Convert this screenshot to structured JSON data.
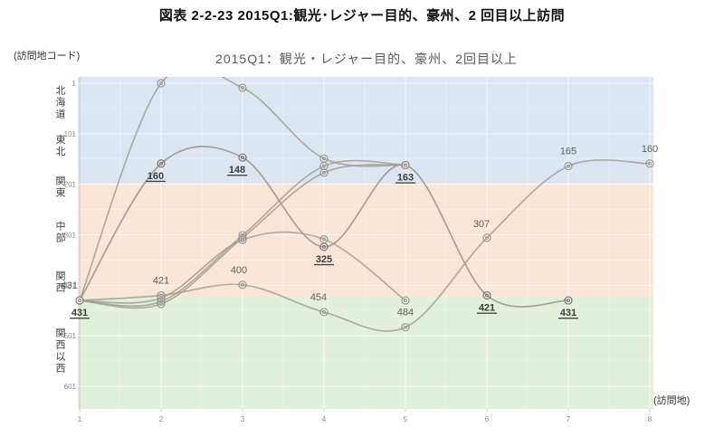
{
  "page_title": "図表 2-2-23 2015Q1:観光･レジャー目的、豪州、2 回目以上訪問",
  "chart_data": {
    "type": "line",
    "title": "2015Q1：観光・レジャー目的、豪州、2回目以上",
    "y_axis_unit": "(訪問地コード)",
    "x_axis_unit": "(訪問地)",
    "x_ticks": [
      1,
      2,
      3,
      4,
      5,
      6,
      7,
      8
    ],
    "y_ticks": [
      1,
      101,
      201,
      301,
      401,
      501,
      601
    ],
    "y_range": [
      1,
      660
    ],
    "y_inverted": true,
    "grid": true,
    "legend": "none",
    "region_labels": [
      {
        "label": "北海道",
        "code": 38
      },
      {
        "label": "東北",
        "code": 124
      },
      {
        "label": "関東",
        "code": 205
      },
      {
        "label": "中部",
        "code": 295
      },
      {
        "label": "関西",
        "code": 393
      },
      {
        "label": "関西以西",
        "code": 529
      }
    ],
    "bands": [
      {
        "name": "band-north",
        "from": 1,
        "to": 200,
        "color": "#dce6f2"
      },
      {
        "name": "band-central",
        "from": 200,
        "to": 424,
        "color": "#fbe5d7"
      },
      {
        "name": "band-west",
        "from": 424,
        "to": 660,
        "color": "#e2efda"
      }
    ],
    "colors": {
      "line": "#a39a90",
      "marker": "#93908b",
      "marker_emphasis": "#6e6b66",
      "label_plain": "#5f5f5f",
      "label_emphasis": "#3d3d3d",
      "tick_label": "#8a8a8a",
      "region_label": "#404040",
      "gridline": "#ffffff",
      "axis": "#c9c9c9"
    },
    "series": [
      {
        "name": "route-1",
        "emphasis": true,
        "points": [
          {
            "stop": 1,
            "code": 431,
            "label": "431",
            "label_style": "emphasis",
            "label_pos": "below"
          },
          {
            "stop": 2,
            "code": 160,
            "label": "160",
            "label_style": "emphasis",
            "label_pos": "below",
            "label_dx": -6
          },
          {
            "stop": 3,
            "code": 148,
            "label": "148",
            "label_style": "emphasis",
            "label_pos": "below",
            "label_dx": -6
          },
          {
            "stop": 4,
            "code": 325,
            "label": "325",
            "label_style": "emphasis",
            "label_pos": "below"
          },
          {
            "stop": 5,
            "code": 163,
            "label": "163",
            "label_style": "emphasis",
            "label_pos": "below"
          },
          {
            "stop": 6,
            "code": 421,
            "label": "421",
            "label_style": "emphasis",
            "label_pos": "below"
          },
          {
            "stop": 7,
            "code": 431,
            "label": "431",
            "label_style": "emphasis",
            "label_pos": "below"
          }
        ]
      },
      {
        "name": "route-2",
        "emphasis": false,
        "points": [
          {
            "stop": 1,
            "code": 431,
            "label": "431",
            "label_style": "plain",
            "label_pos": "left-above"
          },
          {
            "stop": 2,
            "code": 421,
            "label": "421",
            "label_style": "plain",
            "label_pos": "above"
          },
          {
            "stop": 3,
            "code": 400,
            "label": "400",
            "label_style": "plain",
            "label_pos": "above",
            "label_dx": -4
          },
          {
            "stop": 4,
            "code": 454,
            "label": "454",
            "label_style": "plain",
            "label_pos": "above",
            "label_dx": -6
          },
          {
            "stop": 5,
            "code": 484,
            "label": "484",
            "label_style": "plain",
            "label_pos": "above"
          },
          {
            "stop": 6,
            "code": 307,
            "label": "307",
            "label_style": "plain",
            "label_pos": "above-left"
          },
          {
            "stop": 7,
            "code": 165,
            "label": "165",
            "label_style": "plain",
            "label_pos": "above"
          },
          {
            "stop": 8,
            "code": 160,
            "label": "160",
            "label_style": "plain",
            "label_pos": "above"
          }
        ]
      },
      {
        "name": "route-3",
        "emphasis": false,
        "points": [
          {
            "stop": 1,
            "code": 431
          },
          {
            "stop": 2,
            "code": 1
          },
          {
            "stop": 3,
            "code": 10
          },
          {
            "stop": 4,
            "code": 150
          },
          {
            "stop": 5,
            "code": 163
          }
        ]
      },
      {
        "name": "route-4",
        "emphasis": false,
        "points": [
          {
            "stop": 1,
            "code": 431
          },
          {
            "stop": 2,
            "code": 433
          },
          {
            "stop": 3,
            "code": 302
          },
          {
            "stop": 4,
            "code": 165
          },
          {
            "stop": 5,
            "code": 163
          }
        ]
      },
      {
        "name": "route-5",
        "emphasis": false,
        "points": [
          {
            "stop": 1,
            "code": 431
          },
          {
            "stop": 2,
            "code": 438
          },
          {
            "stop": 3,
            "code": 307
          },
          {
            "stop": 4,
            "code": 178
          },
          {
            "stop": 5,
            "code": 163
          }
        ]
      },
      {
        "name": "route-6",
        "emphasis": false,
        "points": [
          {
            "stop": 1,
            "code": 431
          },
          {
            "stop": 2,
            "code": 426
          },
          {
            "stop": 3,
            "code": 311
          },
          {
            "stop": 4,
            "code": 310
          },
          {
            "stop": 5,
            "code": 431
          }
        ]
      }
    ]
  }
}
